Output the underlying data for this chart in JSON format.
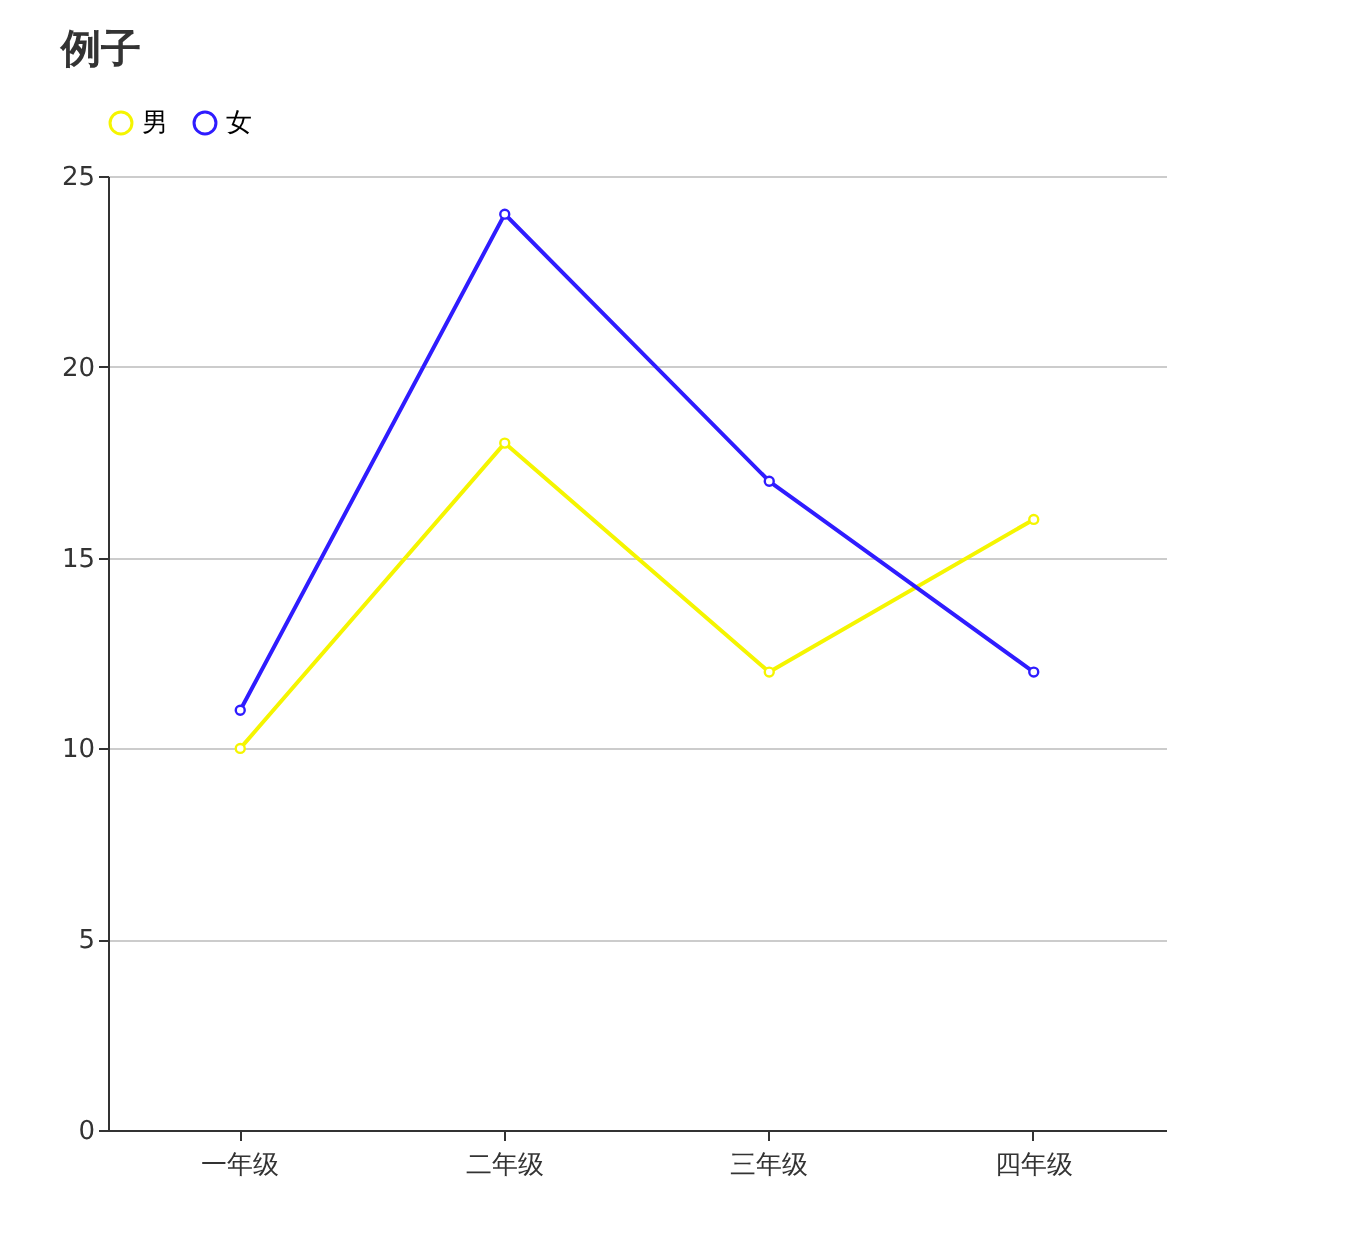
{
  "chart_data": {
    "type": "line",
    "title": "例子",
    "categories": [
      "一年级",
      "二年级",
      "三年级",
      "四年级"
    ],
    "series": [
      {
        "name": "男",
        "color": "#f5f500",
        "values": [
          10,
          18,
          12,
          16
        ]
      },
      {
        "name": "女",
        "color": "#2f1cff",
        "values": [
          11,
          24,
          17,
          12
        ]
      }
    ],
    "ylim": [
      0,
      25
    ],
    "yticks": [
      0,
      5,
      10,
      15,
      20,
      25
    ],
    "grid": "y",
    "legend": "top",
    "marker": "circle",
    "line_style": "solid"
  }
}
